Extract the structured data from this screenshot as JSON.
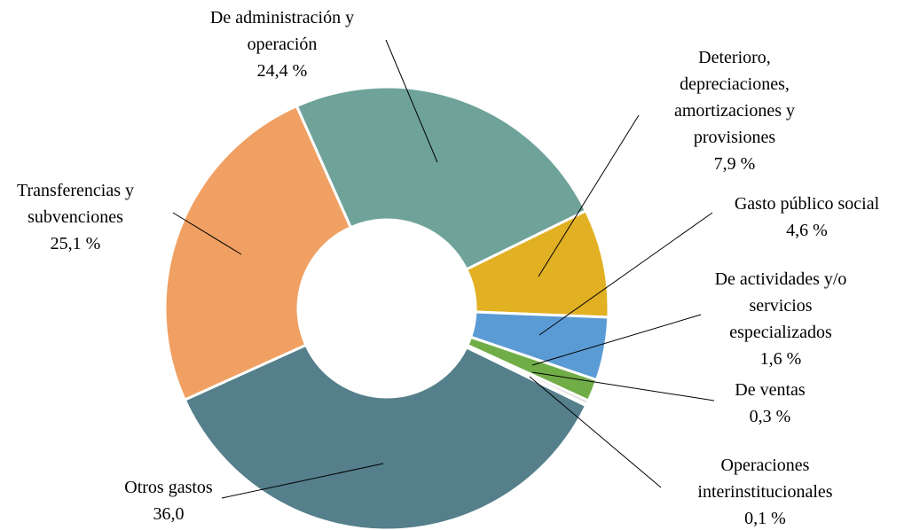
{
  "chart_data": {
    "type": "donut",
    "categories": [
      "De administración y operación",
      "Deterioro, depreciaciones, amortizaciones y provisiones",
      "Gasto público social",
      "De actividades y/o servicios especializados",
      "De ventas",
      "Operaciones interinstitucionales",
      "Otros gastos",
      "Transferencias y subvenciones"
    ],
    "values": [
      24.4,
      7.9,
      4.6,
      1.6,
      0.3,
      0.1,
      36.0,
      25.1
    ],
    "value_labels": [
      "24,4 %",
      "7,9 %",
      "4,6 %",
      "1,6 %",
      "0,3 %",
      "0,1 %",
      "36,0",
      "25,1 %"
    ],
    "colors": [
      "#6fa39a",
      "#e2b023",
      "#5b9bd5",
      "#70ad47",
      "#d9d9d9",
      "#8c8c8c",
      "#547f8b",
      "#f0a062"
    ]
  }
}
